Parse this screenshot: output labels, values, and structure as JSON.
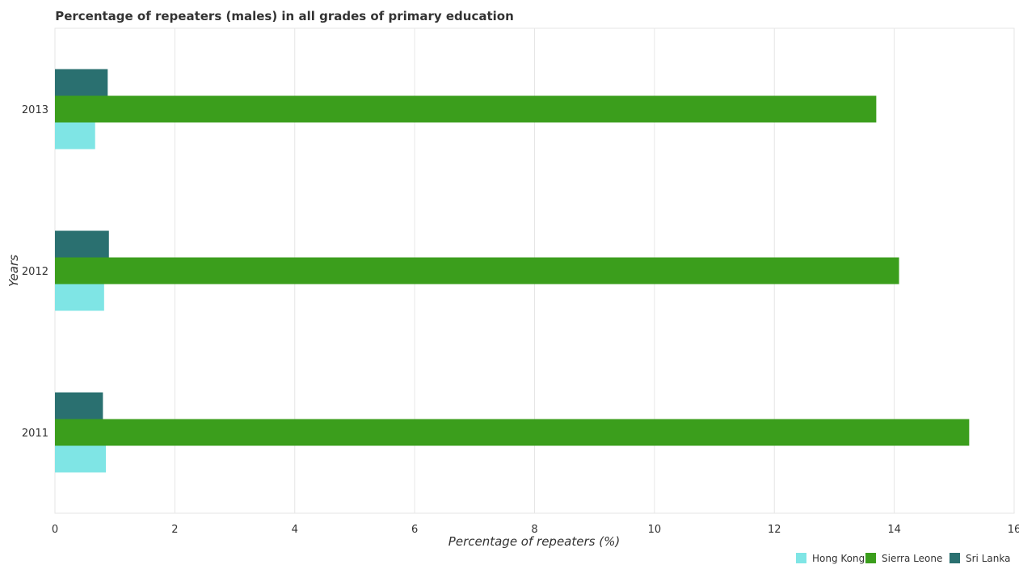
{
  "chart_data": {
    "type": "bar",
    "orientation": "horizontal",
    "title": "Percentage of repeaters (males) in all grades of primary education",
    "xlabel": "Percentage of repeaters (%)",
    "ylabel": "Years",
    "categories": [
      "2011",
      "2012",
      "2013"
    ],
    "xlim": [
      0,
      16
    ],
    "xticks": [
      0,
      2,
      4,
      6,
      8,
      10,
      12,
      14,
      16
    ],
    "grid": true,
    "legend_position": "bottom-right",
    "series": [
      {
        "name": "Hong Kong",
        "color": "#7fe5e5",
        "values": [
          0.85,
          0.82,
          0.67
        ]
      },
      {
        "name": "Sierra Leone",
        "color": "#3b9e1c",
        "values": [
          15.25,
          14.08,
          13.7
        ]
      },
      {
        "name": "Sri Lanka",
        "color": "#2a7070",
        "values": [
          0.8,
          0.9,
          0.88
        ]
      }
    ]
  }
}
